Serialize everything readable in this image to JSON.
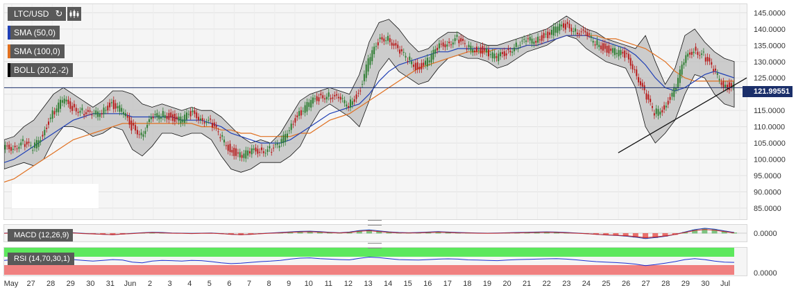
{
  "toolbar": {
    "symbol": "LTC/USD",
    "refresh_icon": "refresh-icon",
    "chart_type_icon": "candlestick-icon"
  },
  "indicators": {
    "sma50": {
      "label": "SMA (50,0)",
      "color": "#1f3fb5"
    },
    "sma100": {
      "label": "SMA (100,0)",
      "color": "#e07020"
    },
    "boll": {
      "label": "BOLL (20,2,-2)",
      "color": "#000000"
    },
    "macd": {
      "label": "MACD (12,26,9)",
      "zero": "0.0000"
    },
    "rsi": {
      "label": "RSI (14,70,30,1)",
      "zero": "0.0000"
    }
  },
  "current_price": "121.99551",
  "colors": {
    "up": "#2e7d32",
    "down": "#b71c1c",
    "sma50": "#1f3fb5",
    "sma100": "#e07020",
    "band_fill": "#bdbdbd",
    "price_line": "#1b2f6a"
  },
  "chart_data": {
    "type": "line",
    "title": "LTC/USD",
    "y_ticks": [
      "145.0000",
      "140.0000",
      "135.0000",
      "130.0000",
      "125.0000",
      "120.0000",
      "115.0000",
      "110.0000",
      "105.0000",
      "100.0000",
      "95.0000",
      "90.0000",
      "85.0000"
    ],
    "ylim": [
      82,
      147
    ],
    "x_labels": [
      "May",
      "27",
      "28",
      "29",
      "30",
      "31",
      "Jun",
      "2",
      "3",
      "4",
      "5",
      "6",
      "7",
      "8",
      "9",
      "10",
      "11",
      "12",
      "13",
      "14",
      "15",
      "16",
      "17",
      "18",
      "19",
      "20",
      "21",
      "22",
      "23",
      "24",
      "25",
      "26",
      "27",
      "28",
      "29",
      "30",
      "Jul"
    ],
    "price": [
      103,
      104,
      105,
      103,
      108,
      114,
      118,
      116,
      115,
      113,
      115,
      117,
      115,
      110,
      108,
      112,
      114,
      113,
      112,
      114,
      113,
      111,
      107,
      103,
      101,
      102,
      103,
      103,
      104,
      110,
      114,
      117,
      119,
      120,
      118,
      117,
      120,
      130,
      136,
      138,
      133,
      131,
      128,
      130,
      134,
      136,
      137,
      134,
      134,
      133,
      131,
      133,
      135,
      136,
      137,
      138,
      140,
      141,
      140,
      138,
      136,
      134,
      133,
      132,
      128,
      120,
      114,
      116,
      121,
      130,
      134,
      132,
      127,
      123,
      122
    ],
    "sma50": [
      99,
      100,
      102,
      104,
      106,
      108,
      110,
      112,
      113,
      114,
      114,
      114,
      114,
      113,
      113,
      113,
      113,
      113,
      112,
      112,
      112,
      111,
      110,
      108,
      107,
      106,
      105,
      105,
      105,
      106,
      108,
      110,
      112,
      114,
      115,
      116,
      117,
      120,
      124,
      127,
      129,
      130,
      131,
      132,
      133,
      133,
      134,
      134,
      134,
      134,
      134,
      134,
      134,
      135,
      135,
      136,
      137,
      138,
      138,
      138,
      137,
      136,
      135,
      134,
      132,
      129,
      125,
      122,
      121,
      122,
      124,
      126,
      127,
      126,
      125
    ],
    "sma100": [
      93,
      94,
      96,
      98,
      100,
      102,
      104,
      106,
      107,
      108,
      109,
      110,
      111,
      111,
      111,
      111,
      111,
      111,
      111,
      111,
      110,
      110,
      109,
      109,
      108,
      108,
      107,
      107,
      107,
      107,
      108,
      108,
      110,
      112,
      113,
      114,
      116,
      118,
      120,
      122,
      124,
      126,
      128,
      129,
      130,
      131,
      132,
      133,
      133,
      133,
      134,
      134,
      134,
      135,
      135,
      136,
      137,
      138,
      138,
      138,
      138,
      137,
      137,
      136,
      135,
      134,
      132,
      130,
      127,
      125,
      124,
      124,
      124,
      124,
      124
    ],
    "boll_upper": [
      106,
      107,
      110,
      112,
      116,
      120,
      122,
      120,
      118,
      116,
      118,
      121,
      121,
      120,
      117,
      116,
      117,
      116,
      115,
      116,
      115,
      115,
      113,
      110,
      107,
      105,
      106,
      105,
      108,
      113,
      118,
      120,
      121,
      122,
      121,
      120,
      126,
      136,
      142,
      143,
      140,
      136,
      133,
      134,
      137,
      139,
      139,
      137,
      136,
      135,
      135,
      136,
      137,
      138,
      139,
      140,
      142,
      144,
      142,
      140,
      139,
      137,
      136,
      135,
      134,
      138,
      130,
      123,
      128,
      138,
      140,
      136,
      133,
      131,
      130
    ],
    "boll_lower": [
      97,
      98,
      99,
      98,
      100,
      106,
      110,
      110,
      109,
      107,
      108,
      110,
      109,
      103,
      101,
      104,
      108,
      108,
      107,
      108,
      108,
      106,
      101,
      97,
      96,
      97,
      99,
      99,
      99,
      101,
      104,
      110,
      115,
      117,
      115,
      113,
      110,
      118,
      127,
      131,
      127,
      125,
      123,
      124,
      128,
      131,
      132,
      131,
      131,
      130,
      128,
      129,
      131,
      133,
      134,
      135,
      137,
      138,
      137,
      134,
      132,
      130,
      129,
      128,
      122,
      110,
      105,
      108,
      112,
      120,
      126,
      125,
      120,
      117,
      116
    ],
    "trendline": {
      "from": [
        0.827,
        102
      ],
      "to": [
        1.0,
        125
      ]
    },
    "macd": [
      0,
      0.2,
      0.5,
      0.8,
      1.0,
      0.8,
      0.5,
      0.2,
      -0.1,
      -0.3,
      -0.5,
      -0.7,
      -0.4,
      -0.1,
      0.2,
      0.4,
      0.3,
      0.1,
      0,
      -0.1,
      0,
      0.1,
      -0.2,
      -0.5,
      -0.7,
      -0.5,
      -0.2,
      0.1,
      0.3,
      0.6,
      0.8,
      0.9,
      0.7,
      0.4,
      0.2,
      0.5,
      1.2,
      1.5,
      1.0,
      0.6,
      0.3,
      0.2,
      0.3,
      0.5,
      0.7,
      0.5,
      0.3,
      0.2,
      0.1,
      0,
      0.1,
      0.2,
      0.3,
      0.4,
      0.5,
      0.6,
      0.5,
      0.3,
      0.1,
      -0.2,
      -0.5,
      -0.8,
      -1.0,
      -1.3,
      -1.8,
      -2.4,
      -2.0,
      -1.4,
      -0.6,
      0.5,
      1.6,
      2.2,
      1.8,
      1.0,
      0.3
    ],
    "rsi": [
      55,
      58,
      60,
      56,
      62,
      65,
      63,
      58,
      55,
      52,
      55,
      58,
      56,
      48,
      45,
      52,
      55,
      54,
      52,
      55,
      54,
      50,
      45,
      42,
      44,
      47,
      50,
      52,
      55,
      60,
      64,
      65,
      62,
      60,
      58,
      57,
      63,
      68,
      66,
      62,
      58,
      57,
      56,
      58,
      60,
      61,
      60,
      57,
      56,
      55,
      54,
      56,
      58,
      59,
      60,
      61,
      62,
      60,
      57,
      53,
      50,
      48,
      46,
      44,
      40,
      34,
      38,
      44,
      50,
      58,
      62,
      58,
      52,
      48,
      47
    ]
  }
}
